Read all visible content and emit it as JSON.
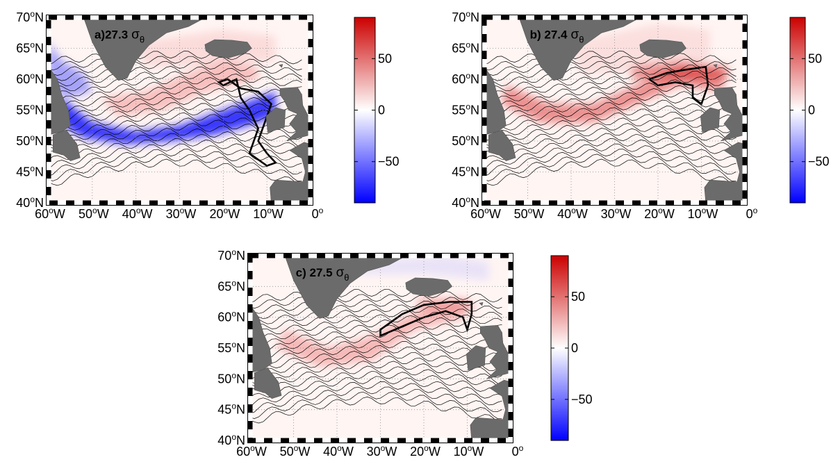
{
  "map": {
    "xlim": [
      -60,
      0
    ],
    "ylim": [
      40,
      70
    ],
    "degree": "o",
    "lat_suffix": "N",
    "lat_ticks": [
      70,
      65,
      60,
      55,
      50,
      45,
      40
    ],
    "lon_ticks": [
      {
        "value": -60,
        "label": "60",
        "suffix": "W"
      },
      {
        "value": -50,
        "label": "50",
        "suffix": "W"
      },
      {
        "value": -40,
        "label": "40",
        "suffix": "W"
      },
      {
        "value": -30,
        "label": "30",
        "suffix": "W"
      },
      {
        "value": -20,
        "label": "20",
        "suffix": "W"
      },
      {
        "value": -10,
        "label": "10",
        "suffix": "W"
      },
      {
        "value": 0,
        "label": "0"
      }
    ],
    "colorbar": {
      "lim": [
        -90,
        90
      ],
      "ticks": [
        50,
        0,
        {
          "value": -50,
          "label": "−50"
        }
      ],
      "colors": [
        "#0000ff",
        "#ffffff",
        "#cc0000"
      ]
    }
  },
  "panels": [
    {
      "label": "a)27.3",
      "symbol": "σ",
      "subscript": "θ"
    },
    {
      "label": "b) 27.4",
      "symbol": "σ",
      "subscript": "θ"
    },
    {
      "label": "c) 27.5",
      "symbol": "σ",
      "subscript": "θ"
    }
  ]
}
